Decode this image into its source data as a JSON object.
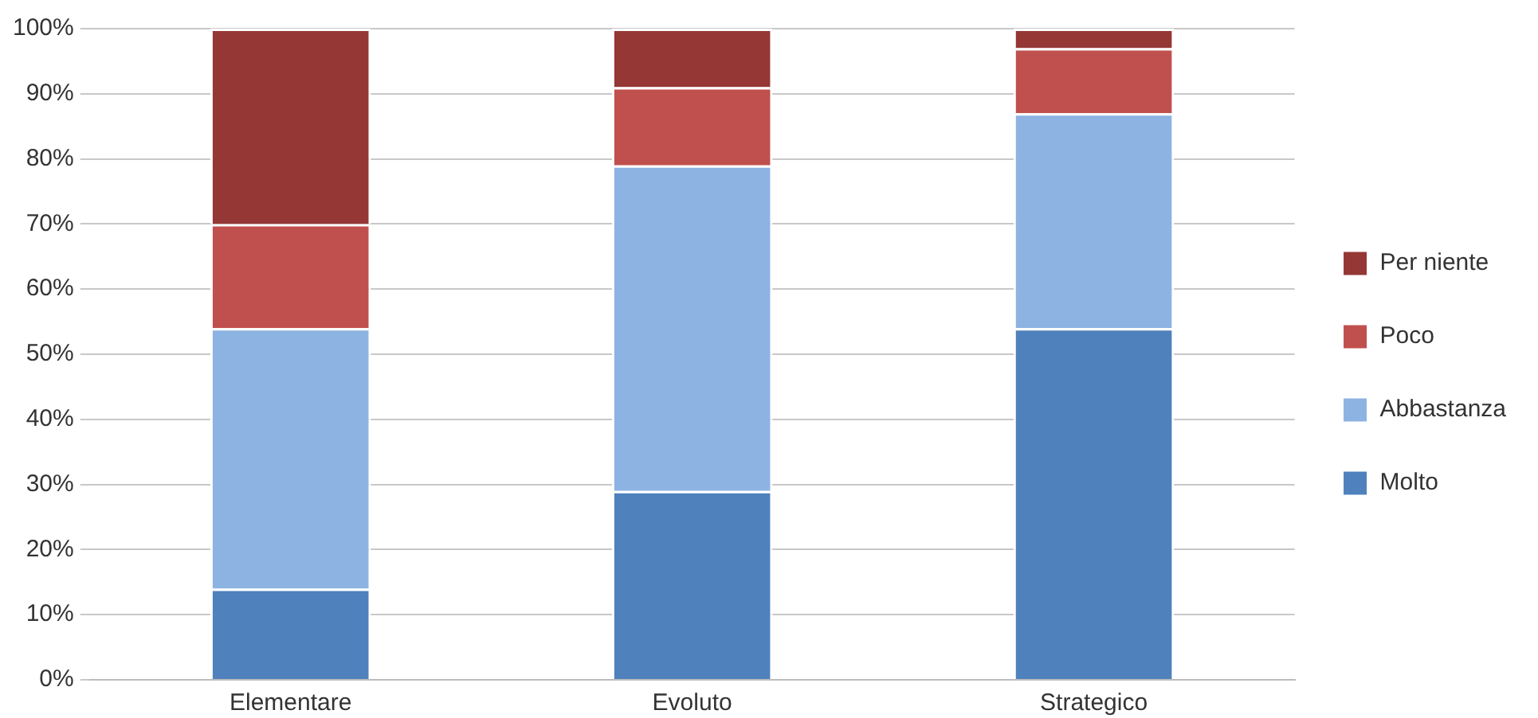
{
  "chart_data": {
    "type": "bar",
    "stacked": true,
    "categories": [
      "Elementare",
      "Evoluto",
      "Strategico"
    ],
    "series": [
      {
        "name": "Molto",
        "color": "#4f81bd",
        "values": [
          14,
          29,
          54
        ]
      },
      {
        "name": "Abbastanza",
        "color": "#8db3e2",
        "values": [
          40,
          50,
          33
        ]
      },
      {
        "name": "Poco",
        "color": "#c0504d",
        "values": [
          16,
          12,
          10
        ]
      },
      {
        "name": "Per niente",
        "color": "#953735",
        "values": [
          30,
          9,
          3
        ]
      }
    ],
    "ylim": [
      0,
      100
    ],
    "yticks": [
      {
        "value": 0,
        "label": "0%"
      },
      {
        "value": 10,
        "label": "10%"
      },
      {
        "value": 20,
        "label": "20%"
      },
      {
        "value": 30,
        "label": "30%"
      },
      {
        "value": 40,
        "label": "40%"
      },
      {
        "value": 50,
        "label": "50%"
      },
      {
        "value": 60,
        "label": "60%"
      },
      {
        "value": 70,
        "label": "70%"
      },
      {
        "value": 80,
        "label": "80%"
      },
      {
        "value": 90,
        "label": "90%"
      },
      {
        "value": 100,
        "label": "100%"
      }
    ],
    "grid": "y",
    "legend": "right"
  }
}
